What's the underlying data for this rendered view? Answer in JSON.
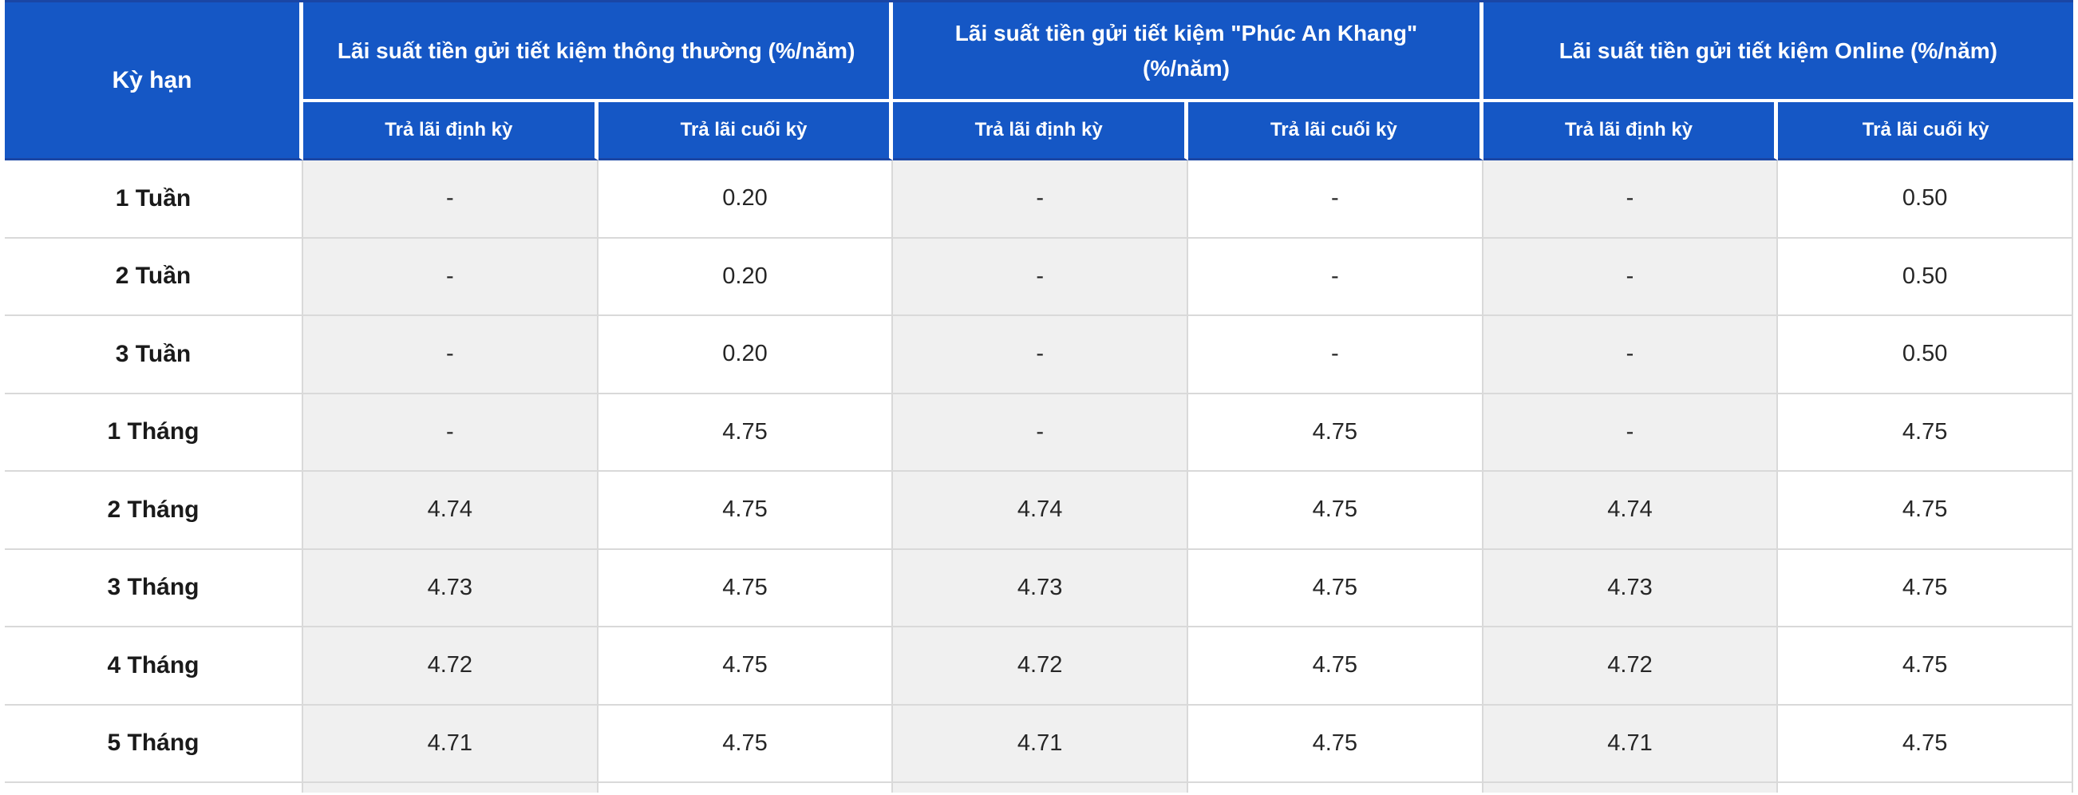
{
  "table": {
    "corner_header": "Kỳ hạn",
    "group_headers": [
      "Lãi suất tiền gửi tiết kiệm thông thường (%/năm)",
      "Lãi suất tiền gửi tiết kiệm \"Phúc An Khang\" (%/năm)",
      "Lãi suất tiền gửi tiết kiệm Online (%/năm)"
    ],
    "sub_headers": [
      "Trả lãi định kỳ",
      "Trả lãi cuối kỳ",
      "Trả lãi định kỳ",
      "Trả lãi cuối kỳ",
      "Trả lãi định kỳ",
      "Trả lãi cuối kỳ"
    ],
    "rows": [
      {
        "term": "1 Tuần",
        "values": [
          "-",
          "0.20",
          "-",
          "-",
          "-",
          "0.50"
        ]
      },
      {
        "term": "2 Tuần",
        "values": [
          "-",
          "0.20",
          "-",
          "-",
          "-",
          "0.50"
        ]
      },
      {
        "term": "3 Tuần",
        "values": [
          "-",
          "0.20",
          "-",
          "-",
          "-",
          "0.50"
        ]
      },
      {
        "term": "1 Tháng",
        "values": [
          "-",
          "4.75",
          "-",
          "4.75",
          "-",
          "4.75"
        ]
      },
      {
        "term": "2 Tháng",
        "values": [
          "4.74",
          "4.75",
          "4.74",
          "4.75",
          "4.74",
          "4.75"
        ]
      },
      {
        "term": "3 Tháng",
        "values": [
          "4.73",
          "4.75",
          "4.73",
          "4.75",
          "4.73",
          "4.75"
        ]
      },
      {
        "term": "4 Tháng",
        "values": [
          "4.72",
          "4.75",
          "4.72",
          "4.75",
          "4.72",
          "4.75"
        ]
      },
      {
        "term": "5 Tháng",
        "values": [
          "4.71",
          "4.75",
          "4.71",
          "4.75",
          "4.71",
          "4.75"
        ]
      }
    ],
    "colors": {
      "header_background": "#1557C5",
      "header_accent_border": "#1A46A5",
      "header_text": "#FFFFFF",
      "stripe_column_background": "#F0F0F0",
      "grid_border": "#D9D9D9",
      "body_text": "#262626"
    }
  }
}
